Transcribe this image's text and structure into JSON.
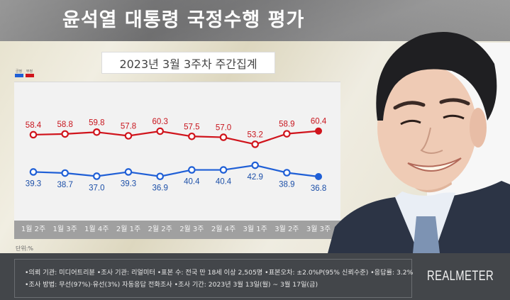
{
  "header": {
    "title": "윤석열 대통령 국정수행 평가",
    "subtitle": "2023년 3월 3주차 주간집계"
  },
  "legend": [
    {
      "label": "긍정",
      "color": "#1f5fd6"
    },
    {
      "label": "부정",
      "color": "#d0141c"
    }
  ],
  "unit_label": "단위:%",
  "footer": {
    "line1": "•의뢰 기관: 미디어트리뷴 •조사 기관: 리얼미터 •표본 수: 전국 만 18세 이상 2,505명 •표본오차: ±2.0%P(95% 신뢰수준) •응답률: 3.2%",
    "line2": "•조사 방법: 무선(97%)·유선(3%) 자동응답 전화조사 •조사 기간: 2023년 3월 13일(월) ~ 3월 17일(금)",
    "logo": "REALMETER"
  },
  "photo": {
    "description": "portrait-photo"
  },
  "chart_data": {
    "type": "line",
    "title": "윤석열 대통령 국정수행 평가",
    "subtitle": "2023년 3월 3주차 주간집계",
    "xlabel": "",
    "ylabel": "단위:%",
    "categories": [
      "1월 2주",
      "1월 3주",
      "1월 4주",
      "2월 1주",
      "2월 2주",
      "2월 3주",
      "2월 4주",
      "3월 1주",
      "3월 2주",
      "3월 3주"
    ],
    "series": [
      {
        "name": "부정",
        "color": "#d0141c",
        "values": [
          58.4,
          58.8,
          59.8,
          57.8,
          60.3,
          57.5,
          57.0,
          53.2,
          58.9,
          60.4
        ]
      },
      {
        "name": "긍정",
        "color": "#1f5fd6",
        "values": [
          39.3,
          38.7,
          37.0,
          39.3,
          36.9,
          40.4,
          40.4,
          42.9,
          38.9,
          36.8
        ]
      }
    ],
    "grid": false,
    "legend_position": "top-left",
    "highlight_last_point": true
  }
}
